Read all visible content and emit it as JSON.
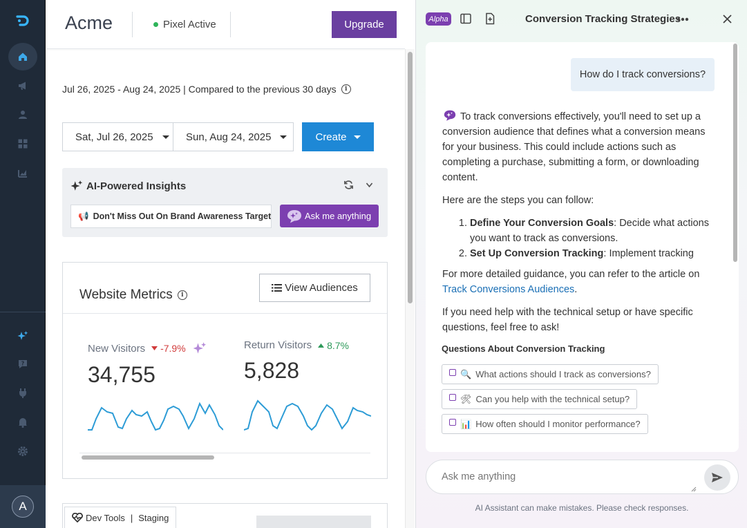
{
  "sidebar": {
    "items": [
      {
        "icon": "home-icon"
      },
      {
        "icon": "megaphone-icon"
      },
      {
        "icon": "users-icon"
      },
      {
        "icon": "grid-icon"
      },
      {
        "icon": "chart-icon"
      }
    ],
    "bottom_items": [
      {
        "icon": "sparkle-icon"
      },
      {
        "icon": "help-icon"
      },
      {
        "icon": "plug-icon"
      },
      {
        "icon": "bell-icon"
      },
      {
        "icon": "gear-icon"
      }
    ],
    "avatar_initial": "A"
  },
  "header": {
    "brand": "Acme",
    "pixel_status": "Pixel Active",
    "upgrade_label": "Upgrade"
  },
  "date_range": {
    "text": "Jul 26, 2025 - Aug 24, 2025 | Compared to the previous 30 days",
    "start_label": "Sat, Jul 26, 2025",
    "end_label": "Sun, Aug 24, 2025",
    "create_label": "Create"
  },
  "insights": {
    "title": "AI-Powered Insights",
    "chip_text": "Don't Miss Out On Brand Awareness Targeting",
    "ask_label": "Ask me anything"
  },
  "metrics": {
    "title": "Website Metrics",
    "view_audiences_label": "View Audiences",
    "items": [
      {
        "label": "New Visitors",
        "delta": "-7.9%",
        "direction": "down",
        "value": "34,755",
        "color": "#d13b3b"
      },
      {
        "label": "Return Visitors",
        "delta": "8.7%",
        "direction": "up",
        "value": "5,828",
        "color": "#2e9a5a"
      }
    ],
    "sparkline_color": "#2d9cd6"
  },
  "dev_tools": {
    "label": "Dev Tools",
    "env": "Staging"
  },
  "assistant": {
    "badge": "Alpha",
    "title": "Conversion Tracking Strategies",
    "user_message": "How do I track conversions?",
    "ai_intro": "To track conversions effectively, you'll need to set up a conversion audience that defines what a conversion means for your business. This could include actions such as completing a purchase, submitting a form, or downloading content.",
    "steps_intro": "Here are the steps you can follow:",
    "steps": [
      {
        "bold": "Define Your Conversion Goals",
        "rest": ": Decide what actions you want to track as conversions."
      },
      {
        "bold": "Set Up Conversion Tracking",
        "rest": ": Implement tracking"
      }
    ],
    "guidance_prefix": "For more detailed guidance, you can refer to the article on ",
    "guidance_link": "Track Conversions Audiences",
    "guidance_suffix": ".",
    "closing": "If you need help with the technical setup or have specific questions, feel free to ask!",
    "questions_title": "Questions About Conversion Tracking",
    "questions": [
      {
        "emoji": "🔍",
        "text": "What actions should I track as conversions?"
      },
      {
        "emoji": "🛠",
        "text": "Can you help with the technical setup?"
      },
      {
        "emoji": "📊",
        "text": "How often should I monitor performance?"
      }
    ],
    "input_placeholder": "Ask me anything",
    "disclaimer": "AI Assistant can make mistakes. Please check responses."
  },
  "colors": {
    "sidebar_bg": "#1f2a38",
    "upgrade_bg": "#6a3fa0",
    "create_bg": "#1e88d6",
    "ai_purple": "#7c3fb0",
    "link": "#1a6fb5"
  }
}
